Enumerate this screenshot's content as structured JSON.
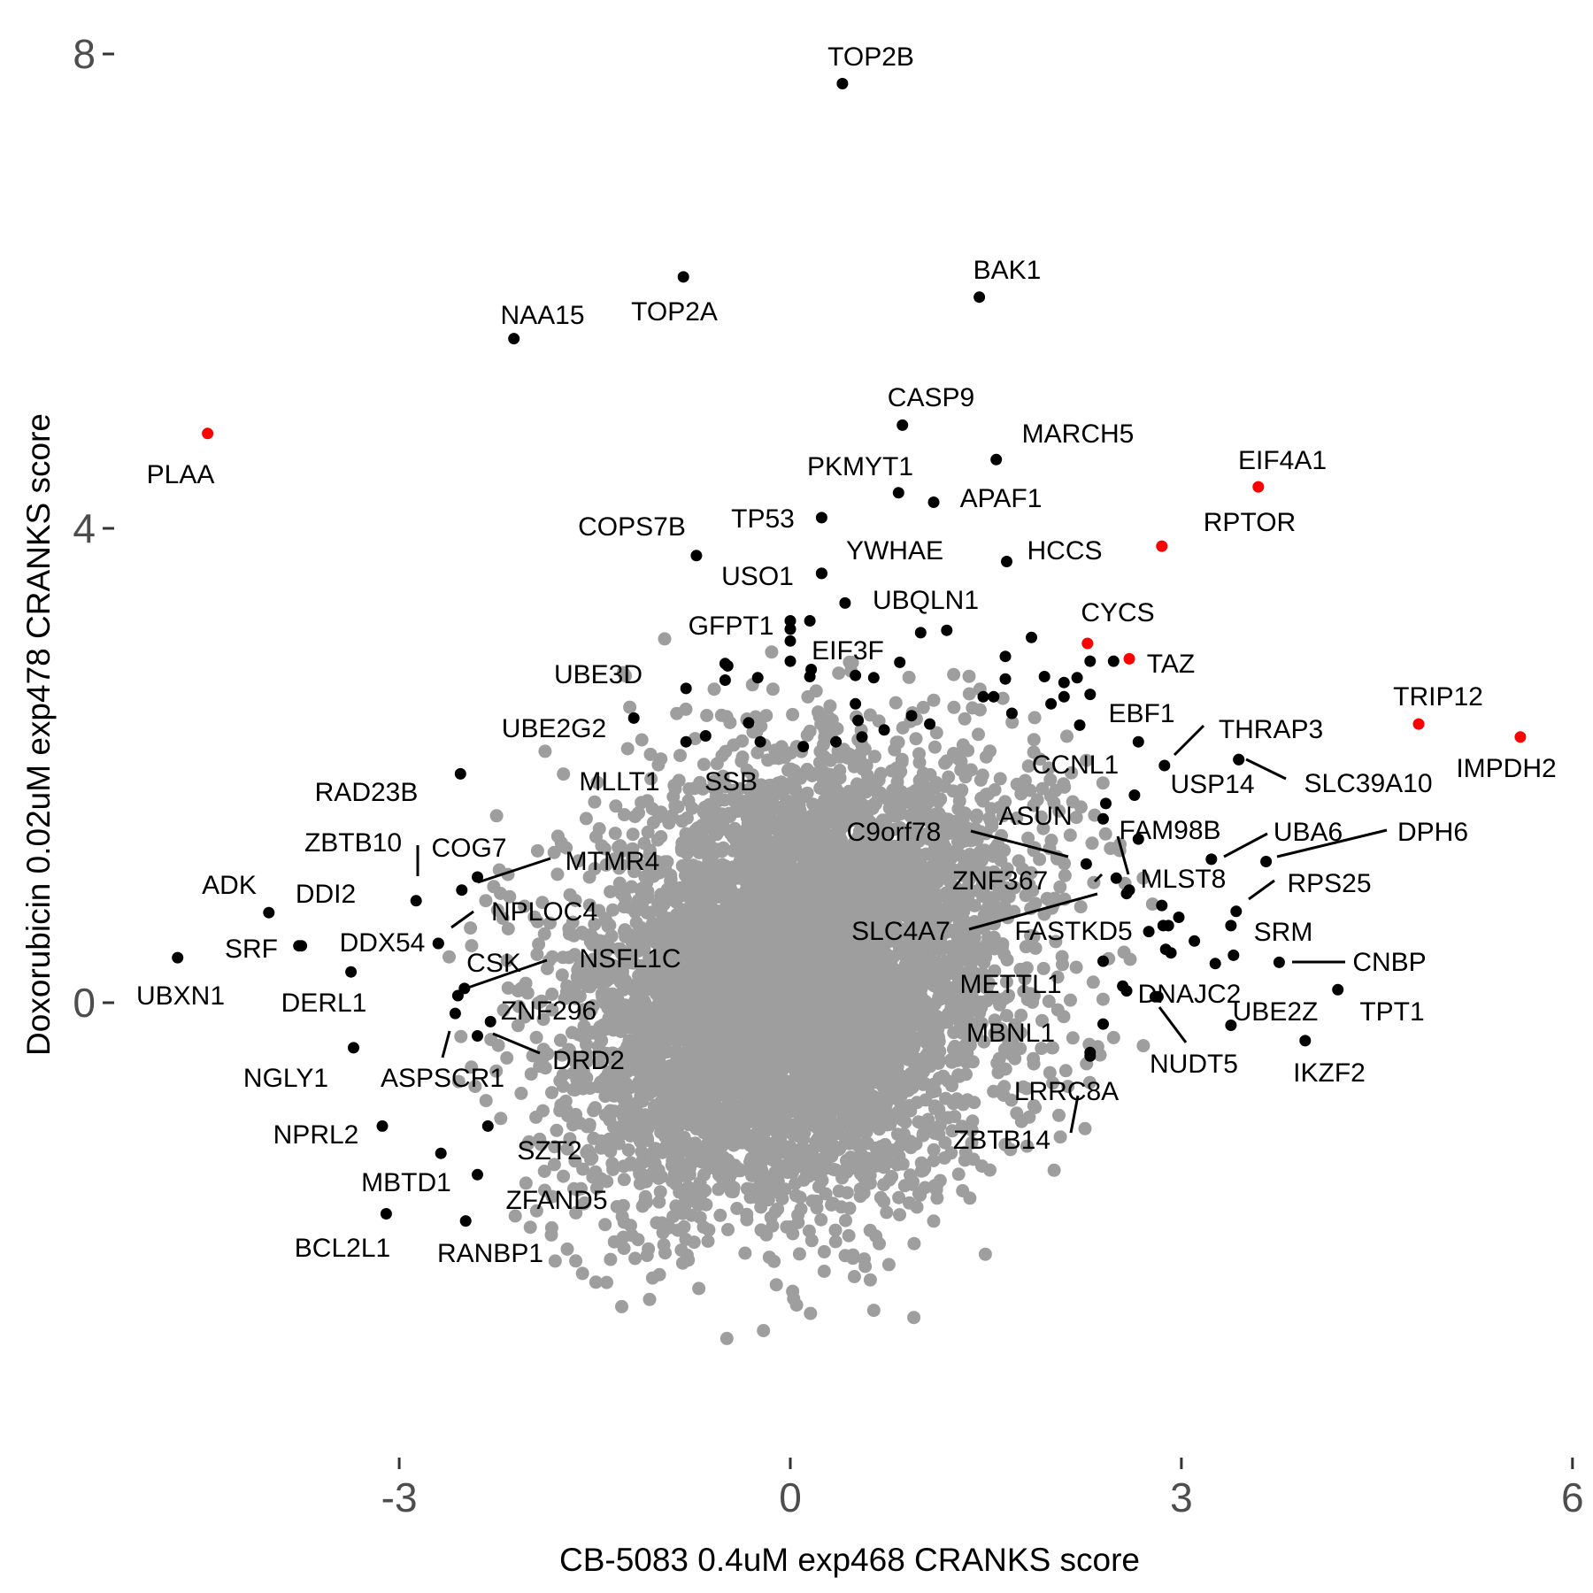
{
  "chart_data": {
    "type": "scatter",
    "xlabel": "CB-5083 0.4uM exp468 CRANKS score",
    "ylabel": "Doxorubicin 0.02uM exp478 CRANKS score",
    "xlim": [
      -5.4,
      6.05
    ],
    "ylim": [
      -3.9,
      8.3
    ],
    "x_ticks": [
      -3,
      0,
      3,
      6
    ],
    "y_ticks": [
      0,
      4,
      8
    ],
    "x_tick_labels": [
      "-3",
      "0",
      "3",
      "6"
    ],
    "y_tick_labels": [
      "0",
      "4",
      "8"
    ],
    "grid": false,
    "legend": "none",
    "colors": {
      "background": "#9e9e9e",
      "hit": "#000000",
      "highlight": "#ff0000",
      "leader": "#000000"
    },
    "background_cloud": {
      "approx_n": 6000,
      "center": [
        0.05,
        0.15
      ],
      "sd_x": 0.85,
      "sd_y": 0.95,
      "correlation": 0.25
    },
    "labeled_points": [
      {
        "gene": "TOP2B",
        "x": 0.4,
        "y": 7.75,
        "color": "black"
      },
      {
        "gene": "BAK1",
        "x": 1.45,
        "y": 5.95,
        "color": "black"
      },
      {
        "gene": "TOP2A",
        "x": -0.82,
        "y": 6.12,
        "color": "black"
      },
      {
        "gene": "NAA15",
        "x": -2.12,
        "y": 5.6,
        "color": "black"
      },
      {
        "gene": "PLAA",
        "x": -4.47,
        "y": 4.8,
        "color": "red"
      },
      {
        "gene": "CASP9",
        "x": 0.86,
        "y": 4.87,
        "color": "black"
      },
      {
        "gene": "MARCH5",
        "x": 1.58,
        "y": 4.58,
        "color": "black"
      },
      {
        "gene": "EIF4A1",
        "x": 3.59,
        "y": 4.35,
        "color": "red"
      },
      {
        "gene": "PKMYT1",
        "x": 0.83,
        "y": 4.3,
        "color": "black"
      },
      {
        "gene": "APAF1",
        "x": 1.1,
        "y": 4.22,
        "color": "black"
      },
      {
        "gene": "TP53",
        "x": 0.24,
        "y": 4.09,
        "color": "black"
      },
      {
        "gene": "RPTOR",
        "x": 2.85,
        "y": 3.85,
        "color": "red"
      },
      {
        "gene": "COPS7B",
        "x": -0.72,
        "y": 3.77,
        "color": "black"
      },
      {
        "gene": "YWHAE",
        "x": 0.24,
        "y": 3.62,
        "color": "black"
      },
      {
        "gene": "HCCS",
        "x": 1.66,
        "y": 3.72,
        "color": "black"
      },
      {
        "gene": "USO1",
        "x": 0.24,
        "y": 3.62,
        "color": "black"
      },
      {
        "gene": "UBQLN1",
        "x": 0.42,
        "y": 3.37,
        "color": "black"
      },
      {
        "gene": "CYCS",
        "x": 2.28,
        "y": 3.03,
        "color": "red"
      },
      {
        "gene": "TAZ",
        "x": 2.6,
        "y": 2.9,
        "color": "red"
      },
      {
        "gene": "GFPT1",
        "x": 0.0,
        "y": 3.15,
        "color": "black"
      },
      {
        "gene": "EIF3F",
        "x": 0.15,
        "y": 2.75,
        "color": "black"
      },
      {
        "gene": "UBE3D",
        "x": -0.8,
        "y": 2.65,
        "color": "black"
      },
      {
        "gene": "UBE2G2",
        "x": -1.2,
        "y": 2.4,
        "color": "black"
      },
      {
        "gene": "TRIP12",
        "x": 4.82,
        "y": 2.35,
        "color": "red"
      },
      {
        "gene": "IMPDH2",
        "x": 5.6,
        "y": 2.24,
        "color": "red"
      },
      {
        "gene": "EBF1",
        "x": 2.67,
        "y": 2.2,
        "color": "black"
      },
      {
        "gene": "THRAP3",
        "x": 2.87,
        "y": 2.0,
        "color": "black"
      },
      {
        "gene": "USP14",
        "x": 3.44,
        "y": 2.05,
        "color": "black"
      },
      {
        "gene": "SLC39A10",
        "x": 3.44,
        "y": 2.05,
        "color": "black"
      },
      {
        "gene": "CCNL1",
        "x": 2.64,
        "y": 1.75,
        "color": "black"
      },
      {
        "gene": "MLLT1",
        "x": -0.8,
        "y": 2.2,
        "color": "black"
      },
      {
        "gene": "SSB",
        "x": -0.65,
        "y": 2.25,
        "color": "black"
      },
      {
        "gene": "RAD23B",
        "x": -2.53,
        "y": 1.93,
        "color": "black"
      },
      {
        "gene": "ASUN",
        "x": 2.42,
        "y": 1.68,
        "color": "black"
      },
      {
        "gene": "FAM98B",
        "x": 2.67,
        "y": 1.38,
        "color": "black"
      },
      {
        "gene": "UBA6",
        "x": 3.23,
        "y": 1.21,
        "color": "black"
      },
      {
        "gene": "DPH6",
        "x": 3.65,
        "y": 1.19,
        "color": "black"
      },
      {
        "gene": "C9orf78",
        "x": 2.27,
        "y": 1.17,
        "color": "black"
      },
      {
        "gene": "ZBTB10",
        "x": -2.87,
        "y": 0.86,
        "color": "black"
      },
      {
        "gene": "COG7",
        "x": -2.4,
        "y": 1.06,
        "color": "black"
      },
      {
        "gene": "MTMR4",
        "x": -2.52,
        "y": 0.95,
        "color": "black"
      },
      {
        "gene": "MLST8",
        "x": 2.5,
        "y": 1.05,
        "color": "black"
      },
      {
        "gene": "ZNF367",
        "x": 2.58,
        "y": 0.92,
        "color": "black"
      },
      {
        "gene": "RPS25",
        "x": 3.42,
        "y": 0.77,
        "color": "black"
      },
      {
        "gene": "ADK",
        "x": -4.0,
        "y": 0.76,
        "color": "black"
      },
      {
        "gene": "DDI2",
        "x": -3.75,
        "y": 0.48,
        "color": "black"
      },
      {
        "gene": "NPLOC4",
        "x": -2.7,
        "y": 0.5,
        "color": "black"
      },
      {
        "gene": "SLC4A7",
        "x": 2.6,
        "y": 0.95,
        "color": "black"
      },
      {
        "gene": "FASTKD5",
        "x": 2.86,
        "y": 0.65,
        "color": "black"
      },
      {
        "gene": "SRM",
        "x": 3.38,
        "y": 0.65,
        "color": "black"
      },
      {
        "gene": "DDX54",
        "x": -2.7,
        "y": 0.5,
        "color": "black"
      },
      {
        "gene": "SRF",
        "x": -3.77,
        "y": 0.48,
        "color": "black"
      },
      {
        "gene": "UBXN1",
        "x": -4.7,
        "y": 0.38,
        "color": "black"
      },
      {
        "gene": "CSK",
        "x": -2.55,
        "y": 0.06,
        "color": "black"
      },
      {
        "gene": "NSFL1C",
        "x": -2.5,
        "y": 0.12,
        "color": "black"
      },
      {
        "gene": "CNBP",
        "x": 3.75,
        "y": 0.34,
        "color": "black"
      },
      {
        "gene": "DERL1",
        "x": -3.37,
        "y": 0.26,
        "color": "black"
      },
      {
        "gene": "METTL1",
        "x": 2.55,
        "y": 0.14,
        "color": "black"
      },
      {
        "gene": "DNAJC2",
        "x": 2.82,
        "y": 0.05,
        "color": "black"
      },
      {
        "gene": "UBE2Z",
        "x": 3.38,
        "y": -0.19,
        "color": "black"
      },
      {
        "gene": "TPT1",
        "x": 4.2,
        "y": 0.11,
        "color": "black"
      },
      {
        "gene": "ZNF296",
        "x": -2.3,
        "y": -0.16,
        "color": "black"
      },
      {
        "gene": "ASPSCR1",
        "x": -2.57,
        "y": -0.09,
        "color": "black"
      },
      {
        "gene": "NUDT5",
        "x": 2.8,
        "y": 0.05,
        "color": "black"
      },
      {
        "gene": "MBNL1",
        "x": 2.4,
        "y": -0.18,
        "color": "black"
      },
      {
        "gene": "DRD2",
        "x": -2.4,
        "y": -0.28,
        "color": "black"
      },
      {
        "gene": "NGLY1",
        "x": -3.35,
        "y": -0.38,
        "color": "black"
      },
      {
        "gene": "IKZF2",
        "x": 3.95,
        "y": -0.32,
        "color": "black"
      },
      {
        "gene": "LRRC8A",
        "x": 2.3,
        "y": -0.45,
        "color": "black"
      },
      {
        "gene": "NPRL2",
        "x": -3.13,
        "y": -1.04,
        "color": "black"
      },
      {
        "gene": "ZBTB14",
        "x": 2.3,
        "y": -0.42,
        "color": "black"
      },
      {
        "gene": "SZT2",
        "x": -2.32,
        "y": -1.04,
        "color": "black"
      },
      {
        "gene": "MBTD1",
        "x": -2.68,
        "y": -1.27,
        "color": "black"
      },
      {
        "gene": "ZFAND5",
        "x": -2.4,
        "y": -1.45,
        "color": "black"
      },
      {
        "gene": "BCL2L1",
        "x": -3.1,
        "y": -1.78,
        "color": "black"
      },
      {
        "gene": "RANBP1",
        "x": -2.49,
        "y": -1.84,
        "color": "black"
      }
    ],
    "other_hit_points": [
      [
        0.0,
        3.22
      ],
      [
        0.0,
        3.05
      ],
      [
        0.15,
        3.22
      ],
      [
        0.0,
        2.88
      ],
      [
        0.16,
        2.81
      ],
      [
        0.5,
        2.76
      ],
      [
        0.64,
        2.74
      ],
      [
        0.84,
        2.87
      ],
      [
        1.0,
        3.12
      ],
      [
        1.2,
        3.14
      ],
      [
        1.65,
        2.92
      ],
      [
        1.85,
        3.08
      ],
      [
        1.65,
        2.73
      ],
      [
        1.95,
        2.75
      ],
      [
        2.1,
        2.7
      ],
      [
        2.2,
        2.74
      ],
      [
        2.3,
        2.88
      ],
      [
        2.48,
        2.88
      ],
      [
        2.3,
        2.6
      ],
      [
        2.1,
        2.58
      ],
      [
        1.48,
        2.58
      ],
      [
        1.56,
        2.58
      ],
      [
        1.7,
        2.44
      ],
      [
        2.0,
        2.52
      ],
      [
        -0.5,
        2.72
      ],
      [
        -0.5,
        2.86
      ],
      [
        -0.48,
        2.84
      ],
      [
        -0.25,
        2.74
      ],
      [
        0.5,
        2.52
      ],
      [
        1.07,
        2.35
      ],
      [
        -0.32,
        2.36
      ],
      [
        -0.23,
        2.2
      ],
      [
        0.1,
        2.16
      ],
      [
        0.35,
        2.2
      ],
      [
        0.55,
        2.24
      ],
      [
        0.72,
        2.3
      ],
      [
        0.52,
        2.38
      ],
      [
        0.93,
        2.42
      ],
      [
        2.22,
        2.34
      ],
      [
        2.4,
        1.55
      ],
      [
        2.58,
        0.1
      ],
      [
        2.75,
        0.6
      ],
      [
        2.98,
        0.72
      ],
      [
        2.9,
        0.65
      ],
      [
        2.88,
        0.45
      ],
      [
        2.92,
        0.42
      ],
      [
        3.1,
        0.52
      ],
      [
        3.26,
        0.33
      ],
      [
        3.4,
        0.4
      ],
      [
        2.4,
        0.35
      ],
      [
        2.85,
        0.82
      ]
    ]
  }
}
